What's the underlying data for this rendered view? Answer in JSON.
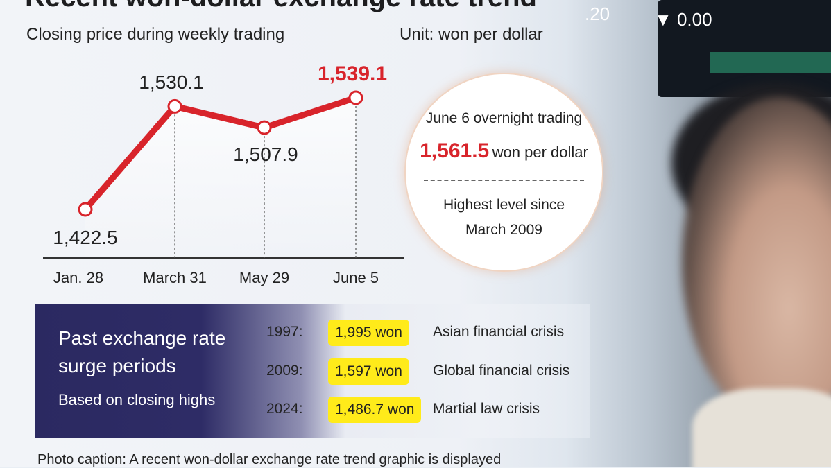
{
  "title": "Recent won-dollar exchange rate trend",
  "subtitle": "Closing price during weekly trading",
  "unit": "Unit: won per dollar",
  "chart_data": {
    "type": "line",
    "title": "Recent won-dollar exchange rate trend",
    "subtitle": "Closing price during weekly trading",
    "ylabel": "Unit: won per dollar",
    "categories": [
      "Jan. 28",
      "March 31",
      "May 29",
      "June 5"
    ],
    "series": [
      {
        "values": [
          1422.5,
          1530.1,
          1507.9,
          1539.1
        ]
      }
    ],
    "data_labels": [
      "1,422.5",
      "1,530.1",
      "1,507.9",
      "1,539.1"
    ],
    "highlight_index": 3,
    "ylim": [
      1380,
      1580
    ],
    "grid": false,
    "line_color": "#d8242b",
    "highlight_color": "#d8242b"
  },
  "callout": {
    "line1": "June 6 overnight trading",
    "rate": "1,561.5",
    "rate_unit": "won per dollar",
    "line3": "Highest level since",
    "line4": "March 2009"
  },
  "surge": {
    "title": "Past exchange rate surge periods",
    "subtitle": "Based on closing highs",
    "rows": [
      {
        "year": "1997:",
        "value": "1,995 won",
        "event": "Asian financial crisis"
      },
      {
        "year": "2009:",
        "value": "1,597 won",
        "event": "Global financial crisis"
      },
      {
        "year": "2024:",
        "value": "1,486.7 won",
        "event": "Martial law crisis"
      }
    ]
  },
  "caption": "Photo caption: A recent won-dollar exchange rate trend graphic is displayed",
  "background": {
    "ticker_a": ".20",
    "ticker_b": "▼ 0.00"
  },
  "colors": {
    "accent_red": "#d8242b",
    "highlight_yellow": "#ffeb1a",
    "panel_navy": "#2b2961"
  }
}
